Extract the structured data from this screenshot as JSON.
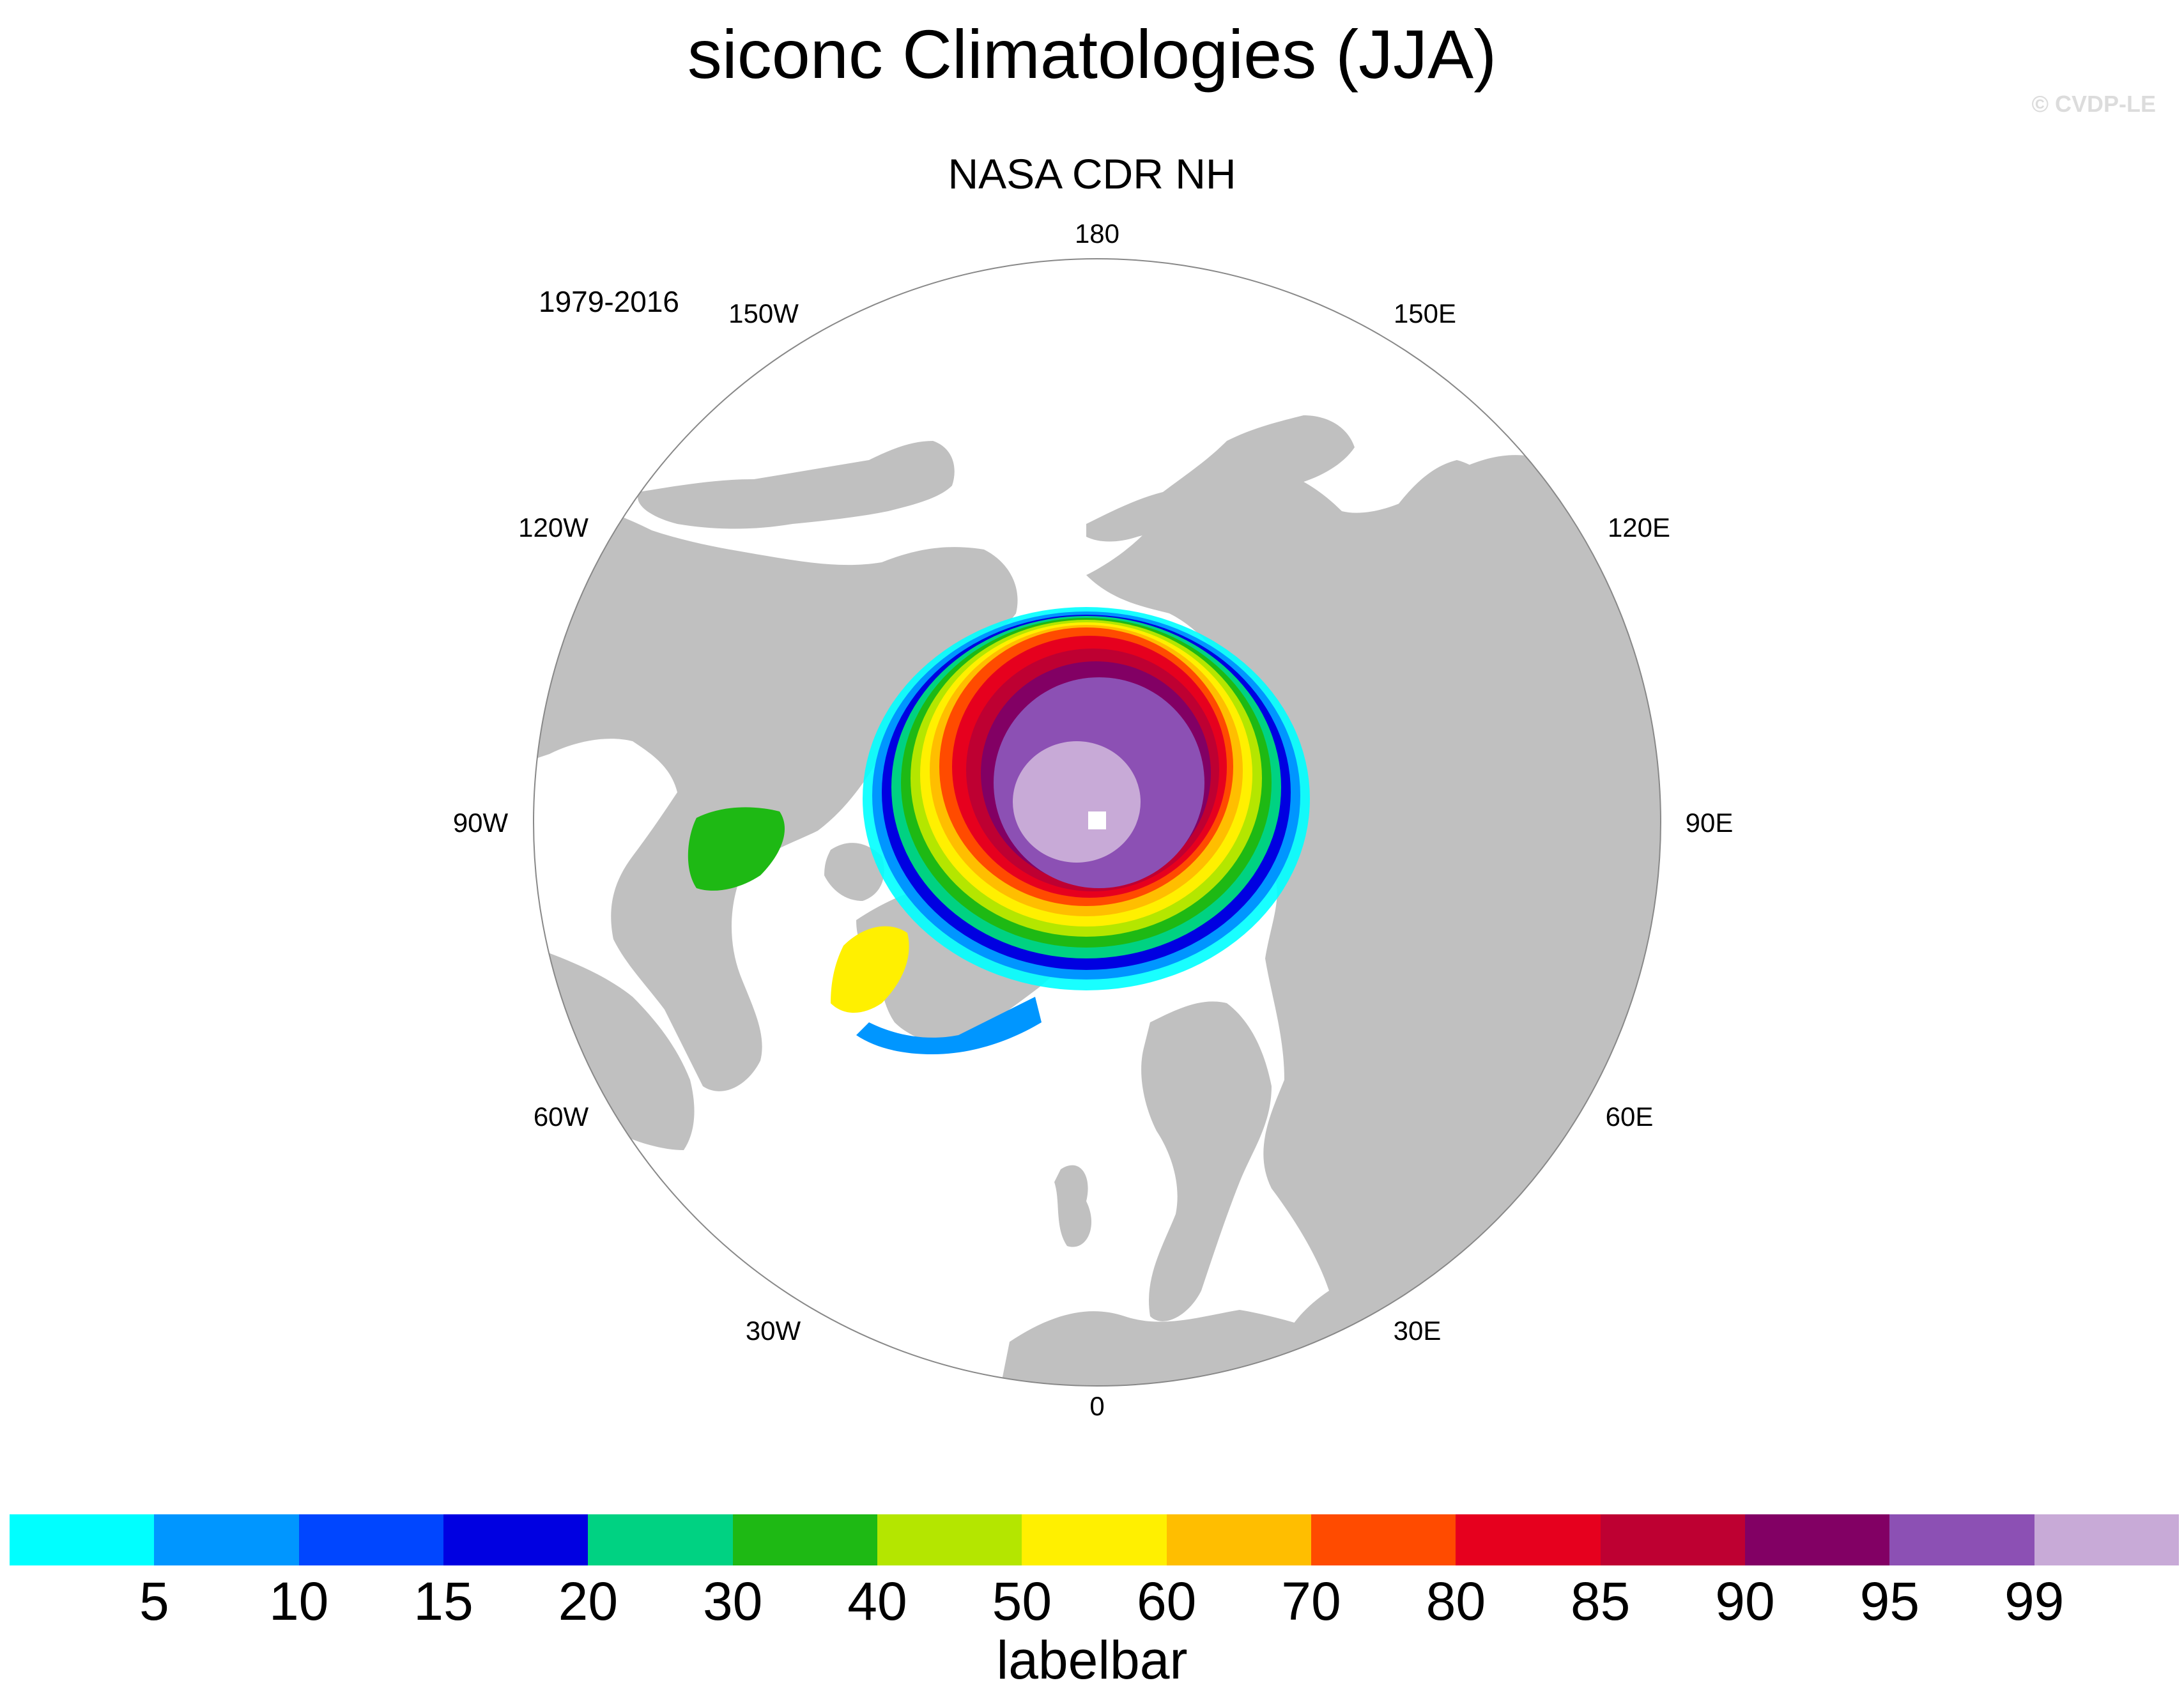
{
  "header": {
    "title": "siconc Climatologies (JJA)",
    "watermark": "© CVDP-LE",
    "subtitle": "NASA CDR NH",
    "period": "1979-2016"
  },
  "map": {
    "projection": "north polar stereographic",
    "longitude_labels": [
      "180",
      "150E",
      "120E",
      "90E",
      "60E",
      "30E",
      "0",
      "30W",
      "60W",
      "90W",
      "120W",
      "150W"
    ],
    "land_color": "#c0c0c0",
    "ocean_color": "#ffffff",
    "pole_hole_color": "#ffffff"
  },
  "labelbar": {
    "title": "labelbar",
    "tick_labels": [
      "5",
      "10",
      "15",
      "20",
      "30",
      "40",
      "50",
      "60",
      "70",
      "80",
      "85",
      "90",
      "95",
      "99"
    ],
    "colors": [
      "#00ffff",
      "#0096ff",
      "#0046ff",
      "#0000e1",
      "#00d282",
      "#1eb914",
      "#b4e600",
      "#fff000",
      "#ffbe00",
      "#ff4b00",
      "#e6001e",
      "#be0032",
      "#820064",
      "#8c50b4",
      "#c8aad7"
    ]
  }
}
